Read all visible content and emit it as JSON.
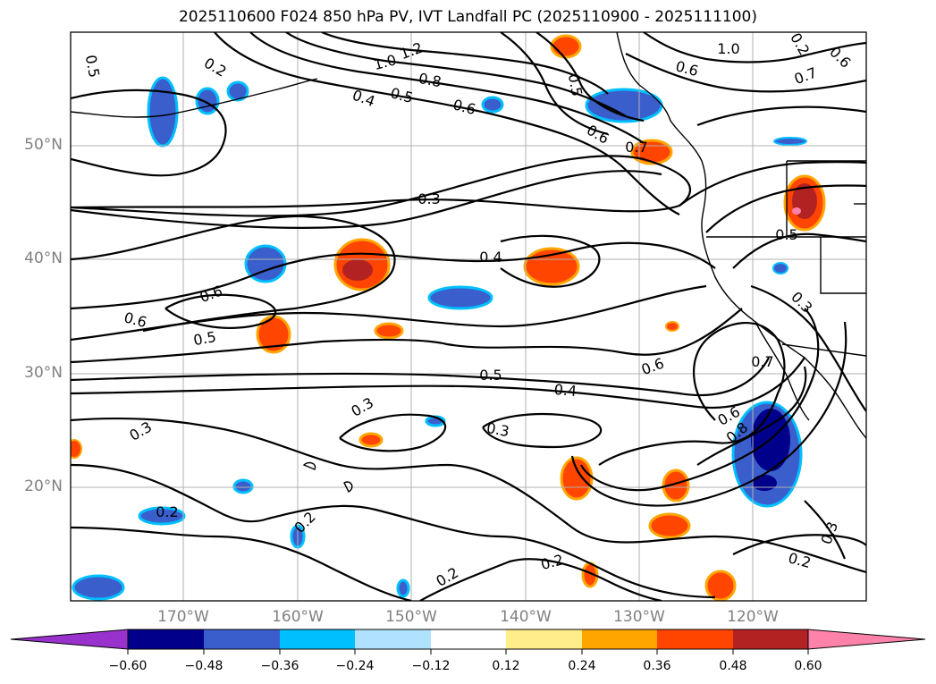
{
  "title": "2025110600 F024 850 hPa PV, IVT Landfall PC (2025110900 - 2025111100)",
  "map": {
    "lat_labels": [
      "50°N",
      "40°N",
      "30°N",
      "20°N"
    ],
    "lon_labels": [
      "170°W",
      "160°W",
      "150°W",
      "140°W",
      "130°W",
      "120°W"
    ],
    "contour_labels": [
      "1.2",
      "1.0",
      "0.8",
      "0.6",
      "0.5",
      "0.4",
      "0.5",
      "0.6",
      "0.7",
      "0.6",
      "0.5",
      "0.2",
      "0.3",
      "0.4",
      "0.6",
      "0.6",
      "0.5",
      "0.5",
      "0.4",
      "0.3",
      "0.3",
      "0.6",
      "0.7",
      "0.6",
      "0.8",
      "0.3",
      "0.2",
      "0.2",
      "0.2",
      "0.2",
      "0.3",
      "0.2",
      "0.5",
      "0.7",
      "0.6",
      "1.0",
      "0.3",
      "0.2"
    ]
  },
  "colorbar": {
    "colors": [
      "#9932CC",
      "#00008B",
      "#3A5FCD",
      "#00BFFF",
      "#B0E2FF",
      "#FFFFFF",
      "#FFEC8B",
      "#FFA500",
      "#FF4500",
      "#B22222",
      "#FF82AB"
    ],
    "tick_labels": [
      "−0.60",
      "−0.48",
      "−0.36",
      "−0.24",
      "−0.12",
      "0.12",
      "0.24",
      "0.36",
      "0.48",
      "0.60"
    ]
  }
}
